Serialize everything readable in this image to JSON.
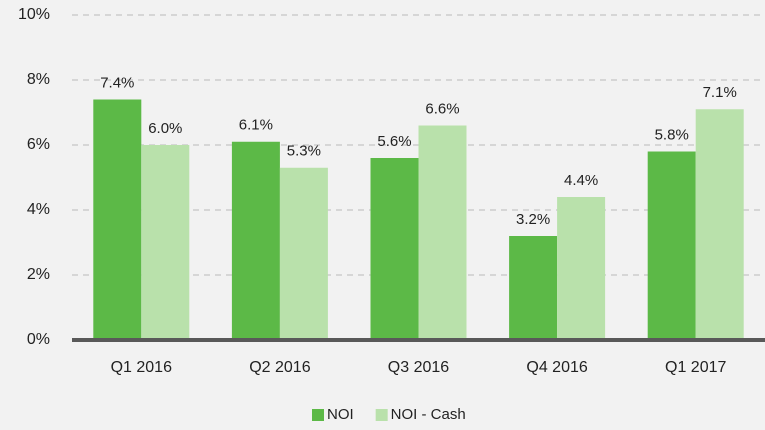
{
  "chart_data": {
    "type": "bar",
    "categories": [
      "Q1 2016",
      "Q2 2016",
      "Q3 2016",
      "Q4 2016",
      "Q1 2017"
    ],
    "series": [
      {
        "name": "NOI",
        "color": "#5cb947",
        "values": [
          7.4,
          6.1,
          5.6,
          3.2,
          5.8
        ],
        "value_labels": [
          "7.4%",
          "6.1%",
          "5.6%",
          "3.2%",
          "5.8%"
        ]
      },
      {
        "name": "NOI - Cash",
        "color": "#b9e1ab",
        "values": [
          6.0,
          5.3,
          6.6,
          4.4,
          7.1
        ],
        "value_labels": [
          "6.0%",
          "5.3%",
          "6.6%",
          "4.4%",
          "7.1%"
        ]
      }
    ],
    "ylim": [
      0,
      10
    ],
    "yticks": [
      {
        "value": 0,
        "label": "0%"
      },
      {
        "value": 2,
        "label": "2%"
      },
      {
        "value": 4,
        "label": "4%"
      },
      {
        "value": 6,
        "label": "6%"
      },
      {
        "value": 8,
        "label": "8%"
      },
      {
        "value": 10,
        "label": "10%"
      }
    ],
    "grid": true,
    "legend": "bottom"
  }
}
